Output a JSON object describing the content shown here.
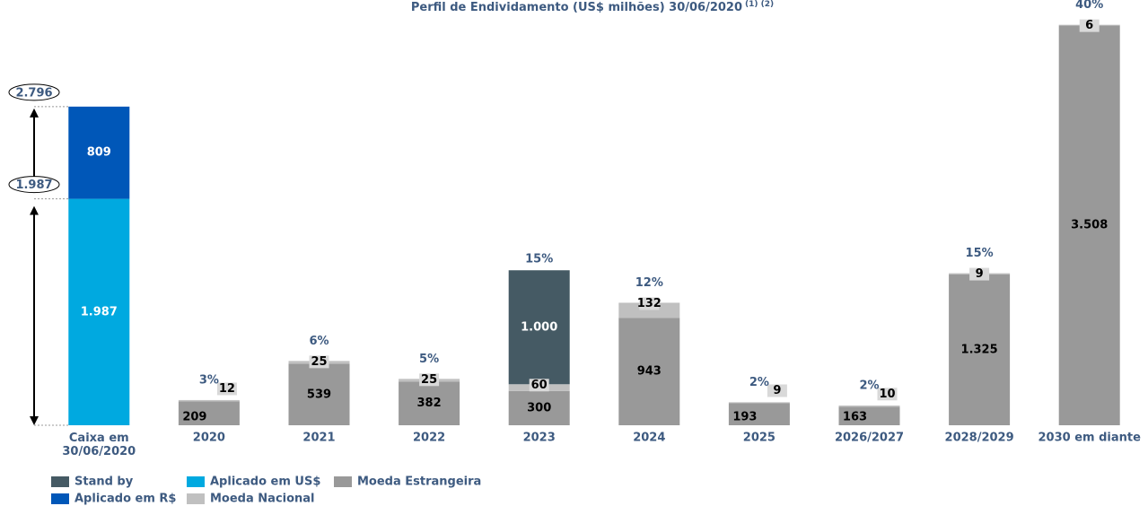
{
  "chart_data": {
    "type": "stacked-bar",
    "title": "Perfil de Endividamento (US$ milhões) 30/06/2020",
    "title_note": "(1) (2)",
    "categories": [
      "Caixa em 30/06/2020",
      "2020",
      "2021",
      "2022",
      "2023",
      "2024",
      "2025",
      "2026/2027",
      "2028/2029",
      "2030 em diante"
    ],
    "series": [
      {
        "name": "Stand by",
        "color": "#455a64",
        "values": [
          null,
          null,
          null,
          null,
          1000,
          null,
          null,
          null,
          null,
          null
        ],
        "value_labels": [
          null,
          null,
          null,
          null,
          "1.000",
          null,
          null,
          null,
          null,
          null
        ]
      },
      {
        "name": "Aplicado em R$",
        "color": "#0057b8",
        "values": [
          809,
          null,
          null,
          null,
          null,
          null,
          null,
          null,
          null,
          null
        ],
        "value_labels": [
          "809",
          null,
          null,
          null,
          null,
          null,
          null,
          null,
          null,
          null
        ]
      },
      {
        "name": "Aplicado em US$",
        "color": "#00a9e0",
        "values": [
          1987,
          null,
          null,
          null,
          null,
          null,
          null,
          null,
          null,
          null
        ],
        "value_labels": [
          "1.987",
          null,
          null,
          null,
          null,
          null,
          null,
          null,
          null,
          null
        ]
      },
      {
        "name": "Moeda Nacional",
        "color": "#c0c0c0",
        "values": [
          null,
          12,
          25,
          25,
          60,
          132,
          9,
          10,
          9,
          6
        ]
      },
      {
        "name": "Moeda Estrangeira",
        "color": "#999999",
        "values": [
          null,
          209,
          539,
          382,
          300,
          943,
          193,
          163,
          1325,
          3508
        ],
        "value_labels": [
          null,
          "209",
          "539",
          "382",
          "300",
          "943",
          "193",
          "163",
          "1.325",
          "3.508"
        ]
      }
    ],
    "share_labels": [
      null,
      "3%",
      "6%",
      "5%",
      "15%",
      "12%",
      "2%",
      "2%",
      "15%",
      "40%"
    ],
    "bracket_labels": [
      "2.796",
      "1.987"
    ],
    "ylim": [
      0,
      3700
    ]
  }
}
